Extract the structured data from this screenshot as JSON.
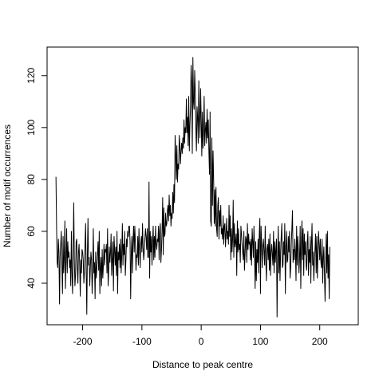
{
  "chart_data": {
    "type": "line",
    "title": "",
    "xlabel": "Distance to peak centre",
    "ylabel": "Number of motif occurrences",
    "xlim": [
      -260,
      265
    ],
    "ylim": [
      24,
      131
    ],
    "x_ticks": [
      -200,
      -100,
      0,
      100,
      200
    ],
    "y_ticks": [
      40,
      60,
      80,
      100,
      120
    ],
    "x_tick_labels": [
      "-200",
      "-100",
      "0",
      "100",
      "200"
    ],
    "y_tick_labels": [
      "40",
      "60",
      "80",
      "100",
      "120"
    ],
    "grid": false,
    "legend": "none",
    "line_color": "#000000",
    "series": [
      {
        "x_start": -245,
        "x_step": 1,
        "values": [
          81,
          62,
          48,
          46,
          57,
          52,
          32,
          50,
          55,
          60,
          47,
          36,
          58,
          44,
          50,
          64,
          38,
          49,
          61,
          44,
          56,
          50,
          52,
          46,
          49,
          39,
          60,
          44,
          36,
          52,
          71,
          49,
          39,
          43,
          56,
          57,
          46,
          40,
          52,
          55,
          47,
          35,
          49,
          44,
          53,
          52,
          49,
          40,
          44,
          55,
          63,
          45,
          28,
          51,
          65,
          47,
          50,
          39,
          46,
          52,
          49,
          36,
          44,
          61,
          44,
          48,
          34,
          52,
          42,
          46,
          51,
          56,
          45,
          60,
          36,
          46,
          50,
          39,
          53,
          42,
          47,
          55,
          47,
          53,
          52,
          55,
          44,
          61,
          39,
          45,
          54,
          48,
          52,
          59,
          43,
          49,
          56,
          37,
          58,
          53,
          47,
          54,
          43,
          60,
          36,
          52,
          49,
          55,
          46,
          57,
          44,
          51,
          63,
          47,
          55,
          51,
          60,
          43,
          49,
          57,
          54,
          60,
          58,
          62,
          62,
          56,
          34,
          51,
          58,
          44,
          56,
          62,
          52,
          62,
          55,
          45,
          51,
          50,
          58,
          47,
          61,
          53,
          46,
          55,
          58,
          52,
          63,
          54,
          49,
          52,
          57,
          61,
          58,
          53,
          61,
          50,
          50,
          79,
          42,
          60,
          52,
          58,
          47,
          56,
          62,
          49,
          58,
          50,
          62,
          55,
          53,
          57,
          56,
          62,
          49,
          60,
          63,
          48,
          53,
          60,
          73,
          51,
          69,
          58,
          59,
          67,
          62,
          63,
          68,
          70,
          64,
          74,
          66,
          70,
          62,
          67,
          65,
          75,
          67,
          78,
          71,
          97,
          90,
          80,
          93,
          79,
          86,
          84,
          97,
          93,
          86,
          91,
          94,
          90,
          96,
          92,
          103,
          94,
          100,
          98,
          111,
          98,
          104,
          93,
          112,
          91,
          101,
          108,
          124,
          117,
          90,
          127,
          110,
          107,
          122,
          114,
          100,
          91,
          108,
          104,
          94,
          118,
          103,
          96,
          115,
          104,
          89,
          106,
          92,
          98,
          112,
          93,
          99,
          102,
          94,
          107,
          96,
          103,
          91,
          82,
          106,
          64,
          62,
          96,
          70,
          91,
          80,
          63,
          76,
          62,
          77,
          61,
          58,
          70,
          73,
          57,
          68,
          62,
          70,
          59,
          61,
          57,
          66,
          55,
          62,
          63,
          54,
          59,
          65,
          57,
          60,
          55,
          70,
          58,
          66,
          49,
          61,
          52,
          57,
          72,
          50,
          63,
          54,
          56,
          59,
          43,
          64,
          52,
          61,
          53,
          55,
          48,
          62,
          59,
          55,
          52,
          49,
          60,
          45,
          51,
          58,
          57,
          48,
          63,
          53,
          59,
          55,
          56,
          49,
          57,
          47,
          61,
          56,
          50,
          62,
          53,
          38,
          56,
          41,
          53,
          48,
          57,
          44,
          59,
          65,
          36,
          62,
          55,
          46,
          54,
          57,
          52,
          47,
          62,
          49,
          41,
          53,
          55,
          49,
          57,
          45,
          59,
          43,
          52,
          55,
          51,
          47,
          60,
          44,
          56,
          48,
          53,
          57,
          27,
          50,
          62,
          44,
          56,
          41,
          52,
          58,
          63,
          46,
          47,
          56,
          51,
          63,
          36,
          54,
          60,
          48,
          49,
          58,
          52,
          60,
          42,
          46,
          55,
          61,
          68,
          48,
          53,
          49,
          57,
          52,
          41,
          62,
          47,
          58,
          53,
          44,
          50,
          62,
          38,
          55,
          64,
          49,
          61,
          43,
          59,
          51,
          56,
          47,
          45,
          56,
          60,
          43,
          53,
          48,
          58,
          40,
          55,
          63,
          47,
          52,
          41,
          48,
          53,
          59,
          44,
          58,
          42,
          51,
          60,
          55,
          49,
          57,
          48,
          46,
          57,
          40,
          50,
          54,
          43,
          33,
          46,
          59,
          44,
          60,
          42,
          51,
          34,
          54
        ]
      }
    ]
  }
}
